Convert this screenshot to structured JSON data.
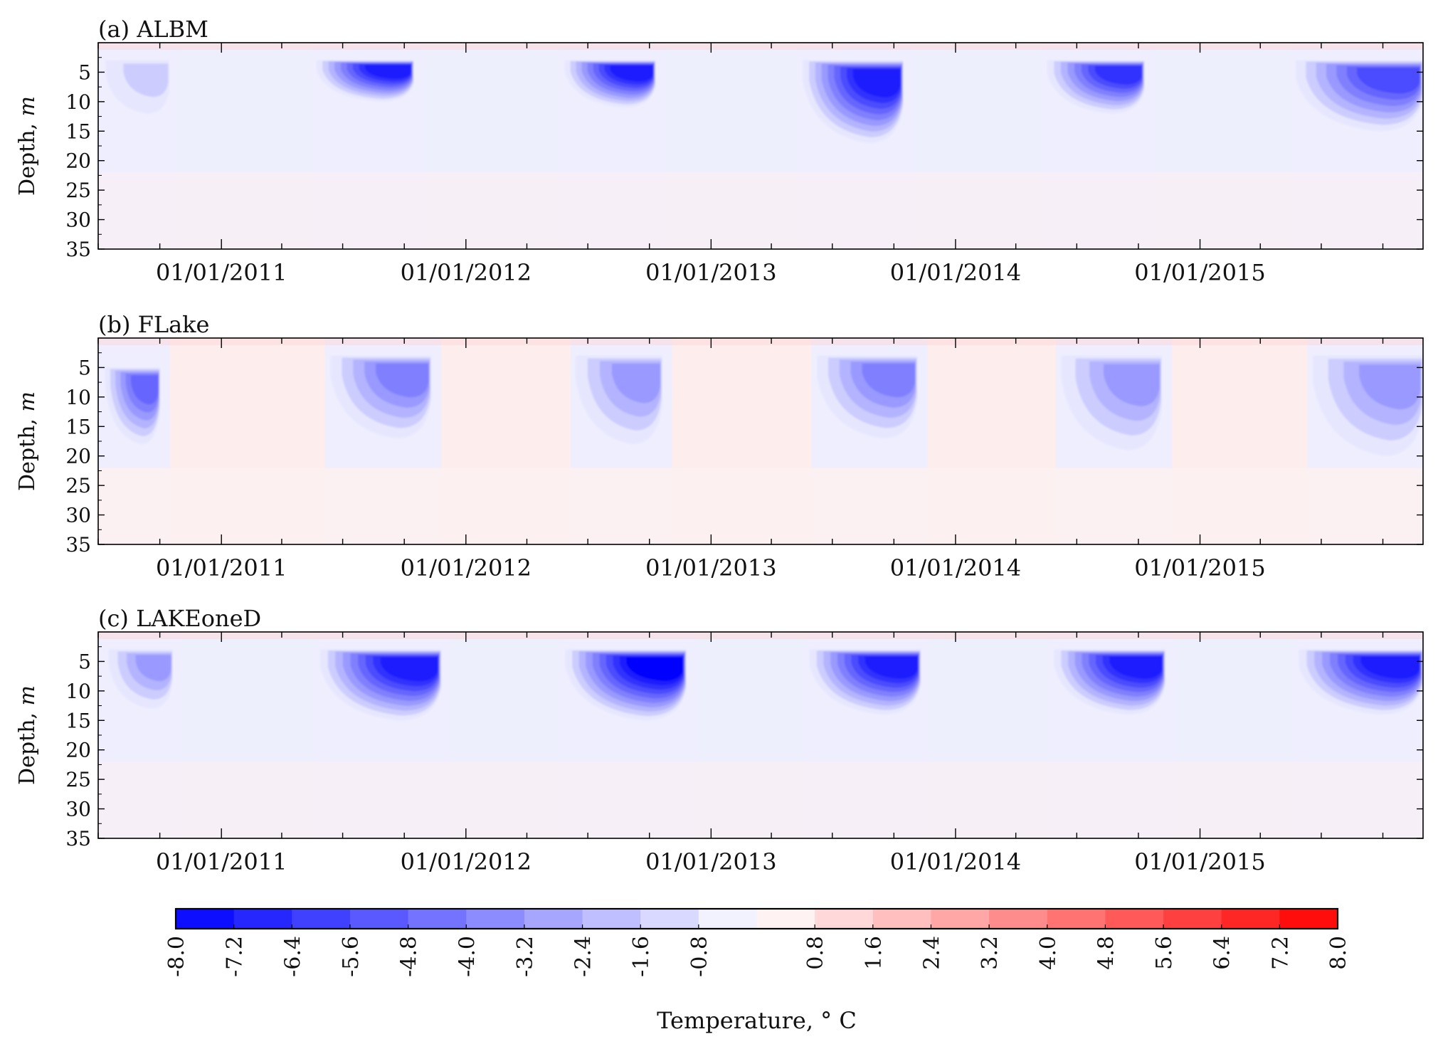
{
  "chart_data": {
    "type": "heatmap",
    "panels": [
      {
        "title": "(a) ALBM",
        "ylabel": "Depth, m",
        "winter_fill": "blue",
        "blobs": [
          {
            "start": "2010-07-10",
            "end": "2010-10-15",
            "top": 3,
            "bottom": 12,
            "min": -1.8
          },
          {
            "start": "2011-05-20",
            "end": "2011-10-15",
            "top": 3,
            "bottom": 10,
            "min": -7.0
          },
          {
            "start": "2012-05-25",
            "end": "2012-10-10",
            "top": 3,
            "bottom": 11,
            "min": -6.8
          },
          {
            "start": "2013-05-15",
            "end": "2013-10-15",
            "top": 3,
            "bottom": 17,
            "min": -7.5
          },
          {
            "start": "2014-05-15",
            "end": "2014-10-10",
            "top": 3,
            "bottom": 12,
            "min": -6.5
          },
          {
            "start": "2015-05-20",
            "end": "2015-11-30",
            "top": 3,
            "bottom": 15,
            "min": -5.8
          }
        ]
      },
      {
        "title": "(b) FLake",
        "ylabel": "Depth, m",
        "winter_fill": "red",
        "blobs": [
          {
            "start": "2010-07-10",
            "end": "2010-10-01",
            "top": 5,
            "bottom": 18,
            "min": -4.6
          },
          {
            "start": "2011-06-10",
            "end": "2011-11-10",
            "top": 3,
            "bottom": 17,
            "min": -3.6
          },
          {
            "start": "2012-06-10",
            "end": "2012-10-20",
            "top": 3,
            "bottom": 18,
            "min": -3.2
          },
          {
            "start": "2013-06-05",
            "end": "2013-11-05",
            "top": 3,
            "bottom": 17,
            "min": -3.8
          },
          {
            "start": "2014-06-05",
            "end": "2014-11-05",
            "top": 3,
            "bottom": 19,
            "min": -3.4
          },
          {
            "start": "2015-06-15",
            "end": "2015-11-30",
            "top": 3,
            "bottom": 20,
            "min": -3.4
          }
        ]
      },
      {
        "title": "(c) LAKEoneD",
        "ylabel": "Depth, m",
        "winter_fill": "blue",
        "blobs": [
          {
            "start": "2010-07-15",
            "end": "2010-10-20",
            "top": 3,
            "bottom": 13,
            "min": -3.0
          },
          {
            "start": "2011-05-25",
            "end": "2011-11-25",
            "top": 3,
            "bottom": 15,
            "min": -7.6
          },
          {
            "start": "2012-05-25",
            "end": "2012-11-25",
            "top": 3,
            "bottom": 15,
            "min": -7.8
          },
          {
            "start": "2013-05-25",
            "end": "2013-11-10",
            "top": 3,
            "bottom": 14,
            "min": -7.6
          },
          {
            "start": "2014-05-25",
            "end": "2014-11-10",
            "top": 3,
            "bottom": 14,
            "min": -7.6
          },
          {
            "start": "2015-05-25",
            "end": "2015-11-30",
            "top": 3,
            "bottom": 14,
            "min": -7.0
          }
        ]
      }
    ],
    "x_range": [
      "2010-07-01",
      "2015-11-30"
    ],
    "x_tick_labels": [
      "01/01/2011",
      "01/01/2012",
      "01/01/2013",
      "01/01/2014",
      "01/01/2015"
    ],
    "y_range": [
      0,
      35
    ],
    "y_tick_labels": [
      "5",
      "10",
      "15",
      "20",
      "25",
      "30",
      "35"
    ],
    "colorbar": {
      "label": "Temperature, ° C",
      "range": [
        -8.0,
        8.0
      ],
      "tick_labels": [
        "-8.0",
        "-7.2",
        "-6.4",
        "-5.6",
        "-4.8",
        "-4.0",
        "-3.2",
        "-2.4",
        "-1.6",
        "-0.8",
        "0.8",
        "1.6",
        "2.4",
        "3.2",
        "4.0",
        "4.8",
        "5.6",
        "6.4",
        "7.2",
        "8.0"
      ]
    },
    "colors": {
      "blue_end": "#0000ff",
      "red_end": "#ff0000",
      "center": "#ffffff",
      "summer_background": "#eeeeff",
      "winter_red": "#fdeeed",
      "winter_blue": "#eeeffc"
    }
  }
}
